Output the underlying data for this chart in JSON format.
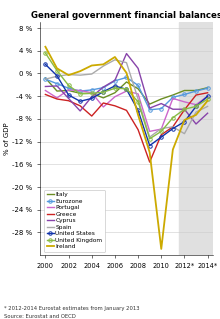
{
  "title": "General government financial balances",
  "ylabel": "% of GDP",
  "source_line1": "Source: Eurostat and OECD",
  "source_line2": "* 2012-2014 Eurostat estimates from January 2013",
  "shaded_start": 2011.5,
  "years": [
    2000,
    2001,
    2002,
    2003,
    2004,
    2005,
    2006,
    2007,
    2008,
    2009,
    2010,
    2011,
    2012,
    2013,
    2014
  ],
  "ylim": [
    -32,
    9
  ],
  "yticks": [
    8,
    4,
    0,
    -4,
    -8,
    -12,
    -16,
    -20,
    -24,
    -28
  ],
  "xtick_years": [
    2000,
    2002,
    2004,
    2006,
    2008,
    2010,
    2012,
    2014
  ],
  "xlabels": [
    "2000",
    "2002",
    "2004",
    "2006",
    "2008",
    "2010",
    "2012*",
    "2014*"
  ],
  "xlim_min": 1999.5,
  "xlim_max": 2014.5,
  "series": {
    "Italy": {
      "color": "#6b8e23",
      "marker": null,
      "linewidth": 1.0,
      "values": [
        -0.8,
        -3.1,
        -3.0,
        -3.5,
        -3.5,
        -4.3,
        -3.4,
        -1.5,
        -2.7,
        -5.4,
        -4.5,
        -3.8,
        -3.0,
        -3.0,
        -2.5
      ]
    },
    "Eurozone": {
      "color": "#5599dd",
      "marker": "o",
      "markersize": 2.5,
      "linewidth": 1.0,
      "values": [
        -1.0,
        -1.8,
        -2.6,
        -3.1,
        -2.9,
        -2.5,
        -1.3,
        -0.7,
        -2.1,
        -6.4,
        -6.2,
        -4.2,
        -3.7,
        -3.1,
        -2.6
      ]
    },
    "Portugal": {
      "color": "#cc66cc",
      "marker": null,
      "linewidth": 1.0,
      "values": [
        -3.0,
        -4.3,
        -2.9,
        -3.0,
        -3.4,
        -5.9,
        -4.1,
        -3.1,
        -3.6,
        -10.2,
        -9.8,
        -4.4,
        -5.0,
        -5.5,
        -4.0
      ]
    },
    "Greece": {
      "color": "#cc2222",
      "marker": null,
      "linewidth": 1.0,
      "values": [
        -3.7,
        -4.5,
        -4.8,
        -5.7,
        -7.5,
        -5.2,
        -5.7,
        -6.5,
        -9.9,
        -15.6,
        -10.8,
        -9.4,
        -6.4,
        -3.8,
        -3.4
      ]
    },
    "Cyprus": {
      "color": "#8844aa",
      "marker": null,
      "linewidth": 1.0,
      "values": [
        -2.3,
        -2.2,
        -4.4,
        -6.6,
        -4.1,
        -2.4,
        -1.2,
        3.5,
        0.9,
        -6.1,
        -5.3,
        -6.3,
        -6.3,
        -8.9,
        -7.0
      ]
    },
    "Spain": {
      "color": "#aaaaaa",
      "marker": null,
      "linewidth": 1.0,
      "values": [
        -1.0,
        -0.5,
        -0.2,
        -0.3,
        -0.1,
        1.3,
        2.4,
        1.9,
        -4.5,
        -11.2,
        -9.7,
        -9.4,
        -10.6,
        -6.8,
        -5.8
      ]
    },
    "United States": {
      "color": "#1133aa",
      "marker": "o",
      "markersize": 2.5,
      "linewidth": 1.0,
      "values": [
        1.6,
        -0.4,
        -3.8,
        -4.9,
        -4.4,
        -3.2,
        -2.2,
        -2.8,
        -6.5,
        -12.7,
        -11.2,
        -9.7,
        -8.5,
        -5.8,
        -4.0
      ]
    },
    "United Kingdom": {
      "color": "#88bb44",
      "marker": "o",
      "markersize": 2.5,
      "linewidth": 1.0,
      "values": [
        3.6,
        0.5,
        -2.1,
        -3.6,
        -3.5,
        -3.3,
        -2.6,
        -2.7,
        -5.0,
        -11.5,
        -10.2,
        -7.8,
        -6.3,
        -5.8,
        -4.5
      ]
    },
    "Ireland": {
      "color": "#ccaa00",
      "marker": null,
      "linewidth": 1.3,
      "values": [
        4.7,
        0.9,
        -0.3,
        0.4,
        1.4,
        1.6,
        2.9,
        0.1,
        -7.3,
        -13.9,
        -30.9,
        -13.4,
        -8.2,
        -7.3,
        -4.8
      ]
    }
  }
}
